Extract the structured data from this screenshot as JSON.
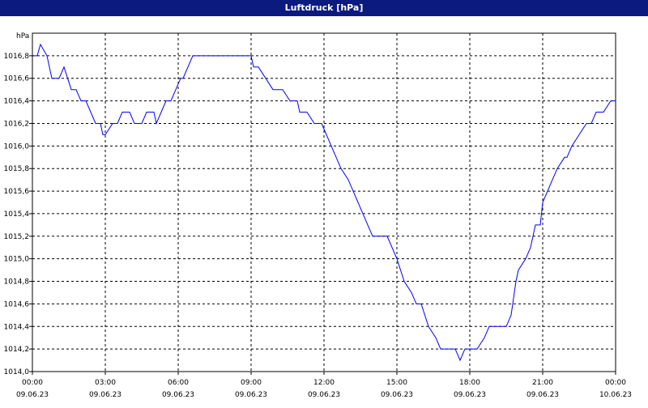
{
  "window": {
    "title": "Luftdruck [hPa]"
  },
  "colors": {
    "title_bg": "#0a1a7e",
    "line": "#0000ff",
    "grid": "#000000"
  },
  "chart_data": {
    "type": "line",
    "title": "Luftdruck [hPa]",
    "ylabel": "hPa",
    "xlabel": "",
    "ylim": [
      1014.0,
      1017.0
    ],
    "xlim_hours": [
      0,
      24
    ],
    "grid": true,
    "yticks": [
      "1014,0",
      "1014,2",
      "1014,4",
      "1014,6",
      "1014,8",
      "1015,0",
      "1015,2",
      "1015,4",
      "1015,6",
      "1015,8",
      "1016,0",
      "1016,2",
      "1016,4",
      "1016,6",
      "1016,8"
    ],
    "ytick_values": [
      1014.0,
      1014.2,
      1014.4,
      1014.6,
      1014.8,
      1015.0,
      1015.2,
      1015.4,
      1015.6,
      1015.8,
      1016.0,
      1016.2,
      1016.4,
      1016.6,
      1016.8
    ],
    "xticks": [
      {
        "time": "00:00",
        "date": "09.06.23"
      },
      {
        "time": "03:00",
        "date": "09.06.23"
      },
      {
        "time": "06:00",
        "date": "09.06.23"
      },
      {
        "time": "09:00",
        "date": "09.06.23"
      },
      {
        "time": "12:00",
        "date": "09.06.23"
      },
      {
        "time": "15:00",
        "date": "09.06.23"
      },
      {
        "time": "18:00",
        "date": "09.06.23"
      },
      {
        "time": "21:00",
        "date": "09.06.23"
      },
      {
        "time": "00:00",
        "date": "10.06.23"
      }
    ],
    "series": [
      {
        "x": [
          0.0,
          0.2,
          0.33,
          0.6,
          0.8,
          1.1,
          1.3,
          1.6,
          1.8,
          2.0,
          2.2,
          2.4,
          2.6,
          2.8,
          2.9,
          3.0,
          3.3,
          3.5,
          3.7,
          4.0,
          4.2,
          4.3,
          4.5,
          4.7,
          5.0,
          5.1,
          5.3,
          5.5,
          5.7,
          5.9,
          6.1,
          6.2,
          6.4,
          6.6,
          6.8,
          7.0,
          7.3,
          7.6,
          8.0,
          8.5,
          9.0,
          9.1,
          9.3,
          9.6,
          9.9,
          10.0,
          10.3,
          10.6,
          10.9,
          11.0,
          11.3,
          11.6,
          11.8,
          11.9,
          12.3,
          12.5,
          12.7,
          13.0,
          13.2,
          13.4,
          13.6,
          13.8,
          14.0,
          14.3,
          14.6,
          15.0,
          15.3,
          15.6,
          15.8,
          16.0,
          16.3,
          16.6,
          16.8,
          17.1,
          17.4,
          17.6,
          17.8,
          17.9,
          18.0,
          18.3,
          18.6,
          18.8,
          19.0,
          19.3,
          19.5,
          19.7,
          19.9,
          20.0,
          20.3,
          20.5,
          20.7,
          20.9,
          21.0,
          21.2,
          21.4,
          21.6,
          21.9,
          22.0,
          22.2,
          22.5,
          22.8,
          23.0,
          23.2,
          23.5,
          23.8,
          24.0
        ],
        "y": [
          1016.8,
          1016.8,
          1016.9,
          1016.8,
          1016.6,
          1016.6,
          1016.7,
          1016.5,
          1016.5,
          1016.4,
          1016.4,
          1016.3,
          1016.2,
          1016.2,
          1016.1,
          1016.1,
          1016.2,
          1016.2,
          1016.3,
          1016.3,
          1016.2,
          1016.2,
          1016.2,
          1016.3,
          1016.3,
          1016.2,
          1016.3,
          1016.4,
          1016.4,
          1016.5,
          1016.6,
          1016.6,
          1016.7,
          1016.8,
          1016.8,
          1016.8,
          1016.8,
          1016.8,
          1016.8,
          1016.8,
          1016.8,
          1016.7,
          1016.7,
          1016.6,
          1016.5,
          1016.5,
          1016.5,
          1016.4,
          1016.4,
          1016.3,
          1016.3,
          1016.2,
          1016.2,
          1016.2,
          1016.0,
          1015.9,
          1015.8,
          1015.7,
          1015.6,
          1015.5,
          1015.4,
          1015.3,
          1015.2,
          1015.2,
          1015.2,
          1015.0,
          1014.8,
          1014.7,
          1014.6,
          1014.6,
          1014.4,
          1014.3,
          1014.2,
          1014.2,
          1014.2,
          1014.1,
          1014.2,
          1014.2,
          1014.2,
          1014.2,
          1014.3,
          1014.4,
          1014.4,
          1014.4,
          1014.4,
          1014.5,
          1014.8,
          1014.9,
          1015.0,
          1015.1,
          1015.3,
          1015.3,
          1015.5,
          1015.6,
          1015.7,
          1015.8,
          1015.9,
          1015.9,
          1016.0,
          1016.1,
          1016.2,
          1016.2,
          1016.3,
          1016.3,
          1016.4,
          1016.4
        ]
      }
    ]
  }
}
